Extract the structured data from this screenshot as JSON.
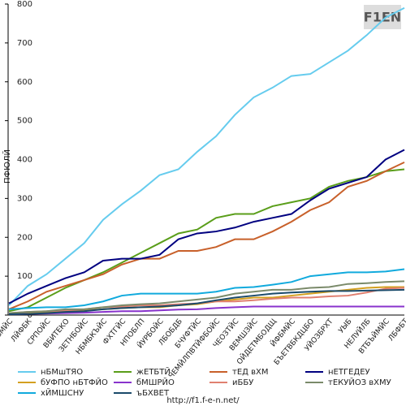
{
  "chart_data": {
    "type": "line",
    "logo": "F1EN",
    "footer": "http://f1.f-e-n.net/",
    "y_label": "ПФЮЛЙ",
    "categories": [
      "БЧУФТБМЙС",
      "ЛЙФБК",
      "СРПОЙС",
      "ВБИТЕКО",
      "ЗЕТНБОЙС",
      "НБМБКЪЙС",
      "ФХТГЙС",
      "НПОБЛП",
      "ЙУРБОЙС",
      "ЛБОБДБ",
      "БЧУФТЙС",
      "ЧЕМЙЛПВТЙФБОЙС",
      "ЧЕОЗТЙС",
      "ВЕМШЗЙС",
      "ОЙДЕТМБОДЩ",
      "ЙФБМЙС",
      "БЪЕТВБКДЦБО",
      "УЙОЗБРХТ",
      "УЫБ",
      "НЕЛУЙЛБ",
      "ВТБЪЙМЙС",
      "ЛБФБТ"
    ],
    "ylim": [
      0,
      800
    ],
    "yticks": [
      0,
      100,
      200,
      300,
      400,
      500,
      600,
      700,
      800
    ],
    "grid": false,
    "series": [
      {
        "name": "нБМшТЯО",
        "color": "#66ccee",
        "values": [
          25,
          75,
          105,
          145,
          185,
          245,
          285,
          320,
          360,
          375,
          420,
          460,
          515,
          560,
          585,
          615,
          620,
          650,
          680,
          720,
          765,
          790
        ]
      },
      {
        "name": "жЕТБТЙ",
        "color": "#5a9e1a",
        "values": [
          10,
          20,
          45,
          70,
          90,
          110,
          135,
          160,
          185,
          210,
          220,
          250,
          260,
          260,
          280,
          290,
          300,
          330,
          345,
          355,
          370,
          375
        ]
      },
      {
        "name": "тЕД вХМ",
        "color": "#c8602a",
        "values": [
          15,
          35,
          60,
          75,
          90,
          105,
          130,
          145,
          145,
          165,
          165,
          175,
          195,
          195,
          215,
          240,
          270,
          290,
          330,
          345,
          370,
          393
        ]
      },
      {
        "name": "нЕТГЕДЕУ",
        "color": "#000080",
        "values": [
          30,
          55,
          75,
          95,
          110,
          140,
          145,
          145,
          155,
          195,
          210,
          215,
          225,
          240,
          250,
          260,
          295,
          325,
          340,
          355,
          400,
          425
        ]
      },
      {
        "name": "бУФПО нБТФЙО",
        "color": "#d4a020",
        "values": [
          5,
          5,
          8,
          10,
          12,
          15,
          18,
          20,
          20,
          25,
          28,
          35,
          40,
          45,
          45,
          50,
          55,
          60,
          65,
          70,
          72,
          72
        ]
      },
      {
        "name": "бМШРЙО",
        "color": "#8833cc",
        "values": [
          2,
          3,
          4,
          5,
          6,
          8,
          10,
          10,
          12,
          14,
          15,
          18,
          20,
          22,
          22,
          22,
          22,
          22,
          22,
          22,
          22,
          22
        ]
      },
      {
        "name": "иББУ",
        "color": "#e08070",
        "values": [
          5,
          8,
          10,
          12,
          15,
          20,
          22,
          25,
          25,
          28,
          30,
          35,
          35,
          38,
          42,
          45,
          45,
          48,
          50,
          58,
          68,
          70
        ]
      },
      {
        "name": "тЕКУЙОЗ вХМУ",
        "color": "#7a8a6a",
        "values": [
          5,
          8,
          10,
          15,
          15,
          20,
          25,
          28,
          30,
          35,
          40,
          45,
          55,
          60,
          65,
          65,
          70,
          72,
          80,
          82,
          85,
          87
        ]
      },
      {
        "name": "хЙМШСНУ",
        "color": "#11aadd",
        "values": [
          15,
          18,
          20,
          20,
          25,
          35,
          50,
          55,
          55,
          55,
          55,
          60,
          70,
          72,
          78,
          85,
          100,
          105,
          110,
          110,
          112,
          118
        ]
      },
      {
        "name": "ъБХВЕТ",
        "color": "#1a4a6a",
        "values": [
          2,
          3,
          5,
          8,
          10,
          15,
          18,
          20,
          22,
          25,
          30,
          38,
          45,
          50,
          55,
          58,
          60,
          62,
          62,
          63,
          64,
          65
        ]
      }
    ]
  }
}
